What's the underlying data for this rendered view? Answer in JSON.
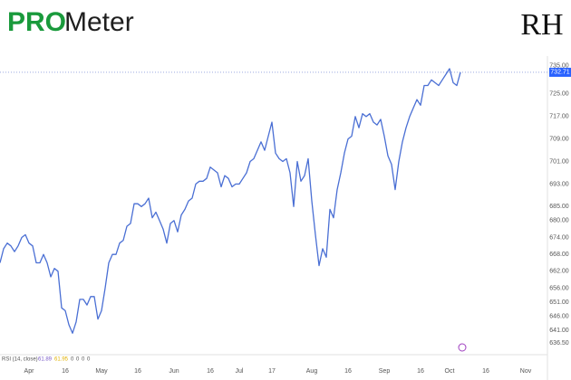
{
  "logo": {
    "pro": "PRO",
    "meter": "Meter"
  },
  "brand_mark": "RH",
  "indicator": {
    "name": "RSI (14, close)",
    "readings": [
      61.89,
      61.95
    ],
    "zeros": [
      0,
      0,
      0,
      0
    ]
  },
  "chart_data": {
    "type": "line",
    "color": "#4a6fd4",
    "values": [
      665,
      670,
      672,
      671,
      669,
      671,
      674,
      675,
      672,
      671,
      665,
      665,
      668,
      665,
      660,
      663,
      662,
      649,
      648,
      643,
      640,
      644,
      652,
      652,
      650,
      653,
      653,
      645,
      648,
      656,
      665,
      668,
      668,
      672,
      673,
      678,
      679,
      686,
      686,
      685,
      686,
      688,
      681,
      683,
      680,
      677,
      672,
      679,
      680,
      676,
      682,
      684,
      687,
      688,
      693,
      694,
      694,
      695,
      699,
      698,
      697,
      692,
      696,
      695,
      692,
      693,
      693,
      695,
      697,
      701,
      702,
      705,
      708,
      705,
      710,
      715,
      704,
      702,
      701,
      702,
      697,
      685,
      701,
      694,
      696,
      702,
      687,
      675,
      664,
      670,
      667,
      684,
      681,
      691,
      697,
      704,
      709,
      710,
      717,
      713,
      718,
      717,
      718,
      715,
      714,
      716,
      710,
      703,
      700,
      691,
      701,
      708,
      713,
      717,
      720,
      723,
      721,
      728,
      728,
      730,
      729,
      728,
      730,
      732,
      734,
      729,
      728,
      732.71
    ],
    "xlim": [
      0,
      151
    ],
    "xticks": [
      {
        "value": 8,
        "label": "Apr"
      },
      {
        "value": 18,
        "label": "16"
      },
      {
        "value": 28,
        "label": "May"
      },
      {
        "value": 38,
        "label": "16"
      },
      {
        "value": 48,
        "label": "Jun"
      },
      {
        "value": 58,
        "label": "16"
      },
      {
        "value": 66,
        "label": "Jul"
      },
      {
        "value": 75,
        "label": "17"
      },
      {
        "value": 86,
        "label": "Aug"
      },
      {
        "value": 96,
        "label": "16"
      },
      {
        "value": 106,
        "label": "Sep"
      },
      {
        "value": 116,
        "label": "16"
      },
      {
        "value": 124,
        "label": "Oct"
      },
      {
        "value": 134,
        "label": "16"
      },
      {
        "value": 145,
        "label": "Nov"
      }
    ],
    "ylim": [
      631.4,
      737.5
    ],
    "yticks": [
      {
        "value": 735,
        "label": "735.00"
      },
      {
        "value": 725,
        "label": "725.00"
      },
      {
        "value": 717,
        "label": "717.00"
      },
      {
        "value": 709,
        "label": "709.00"
      },
      {
        "value": 701,
        "label": "701.00"
      },
      {
        "value": 693,
        "label": "693.00"
      },
      {
        "value": 685,
        "label": "685.00"
      },
      {
        "value": 680,
        "label": "680.00"
      },
      {
        "value": 674,
        "label": "674.00"
      },
      {
        "value": 668,
        "label": "668.00"
      },
      {
        "value": 662,
        "label": "662.00"
      },
      {
        "value": 656,
        "label": "656.00"
      },
      {
        "value": 651,
        "label": "651.00"
      },
      {
        "value": 646,
        "label": "646.00"
      },
      {
        "value": 641,
        "label": "641.00"
      },
      {
        "value": 636.5,
        "label": "636.50"
      }
    ],
    "grid": false
  }
}
